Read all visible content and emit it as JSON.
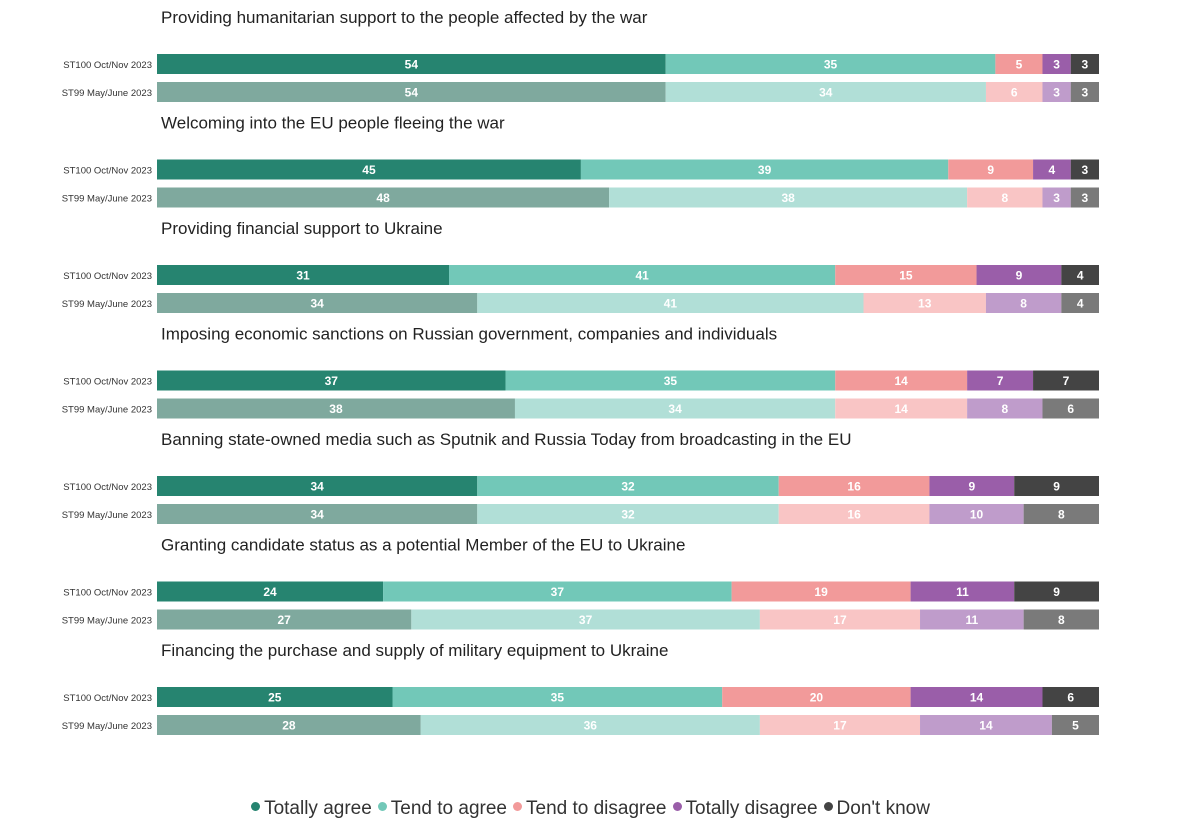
{
  "chart_data": {
    "type": "bar",
    "stacked": true,
    "orientation": "horizontal",
    "normalized_to_100": true,
    "xlim": [
      0,
      100
    ],
    "grid": false,
    "legend_position": "bottom",
    "categories": [
      "Totally agree",
      "Tend to agree",
      "Tend to disagree",
      "Totally disagree",
      "Don't know"
    ],
    "waves": [
      "ST100 Oct/Nov 2023",
      "ST99 May/June 2023"
    ],
    "colors": {
      "current": [
        "#268470",
        "#72c8b8",
        "#f29a9a",
        "#9a5ea9",
        "#444444"
      ],
      "previous": [
        "#7fa99e",
        "#b1dfd7",
        "#f9c5c5",
        "#bf9ccb",
        "#7a7a7a"
      ]
    },
    "items": [
      {
        "title": "Providing humanitarian support to the people affected by the war",
        "rows": [
          {
            "wave": "ST100 Oct/Nov 2023",
            "values": [
              54,
              35,
              5,
              3,
              3
            ]
          },
          {
            "wave": "ST99 May/June 2023",
            "values": [
              54,
              34,
              6,
              3,
              3
            ]
          }
        ]
      },
      {
        "title": "Welcoming into the EU people fleeing the war",
        "rows": [
          {
            "wave": "ST100 Oct/Nov 2023",
            "values": [
              45,
              39,
              9,
              4,
              3
            ]
          },
          {
            "wave": "ST99 May/June 2023",
            "values": [
              48,
              38,
              8,
              3,
              3
            ]
          }
        ]
      },
      {
        "title": "Providing financial support to Ukraine",
        "rows": [
          {
            "wave": "ST100 Oct/Nov 2023",
            "values": [
              31,
              41,
              15,
              9,
              4
            ]
          },
          {
            "wave": "ST99 May/June 2023",
            "values": [
              34,
              41,
              13,
              8,
              4
            ]
          }
        ]
      },
      {
        "title": "Imposing economic sanctions on Russian government, companies and individuals",
        "rows": [
          {
            "wave": "ST100 Oct/Nov 2023",
            "values": [
              37,
              35,
              14,
              7,
              7
            ]
          },
          {
            "wave": "ST99 May/June 2023",
            "values": [
              38,
              34,
              14,
              8,
              6
            ]
          }
        ]
      },
      {
        "title": "Banning state-owned media such as Sputnik and Russia Today from broadcasting in the EU",
        "rows": [
          {
            "wave": "ST100 Oct/Nov 2023",
            "values": [
              34,
              32,
              16,
              9,
              9
            ]
          },
          {
            "wave": "ST99 May/June 2023",
            "values": [
              34,
              32,
              16,
              10,
              8
            ]
          }
        ]
      },
      {
        "title": "Granting candidate status as a potential Member of the EU to Ukraine",
        "rows": [
          {
            "wave": "ST100 Oct/Nov 2023",
            "values": [
              24,
              37,
              19,
              11,
              9
            ]
          },
          {
            "wave": "ST99 May/June 2023",
            "values": [
              27,
              37,
              17,
              11,
              8
            ]
          }
        ]
      },
      {
        "title": "Financing the purchase and supply of military equipment to Ukraine",
        "rows": [
          {
            "wave": "ST100 Oct/Nov 2023",
            "values": [
              25,
              35,
              20,
              14,
              6
            ]
          },
          {
            "wave": "ST99 May/June 2023",
            "values": [
              28,
              36,
              17,
              14,
              5
            ]
          }
        ]
      }
    ]
  }
}
